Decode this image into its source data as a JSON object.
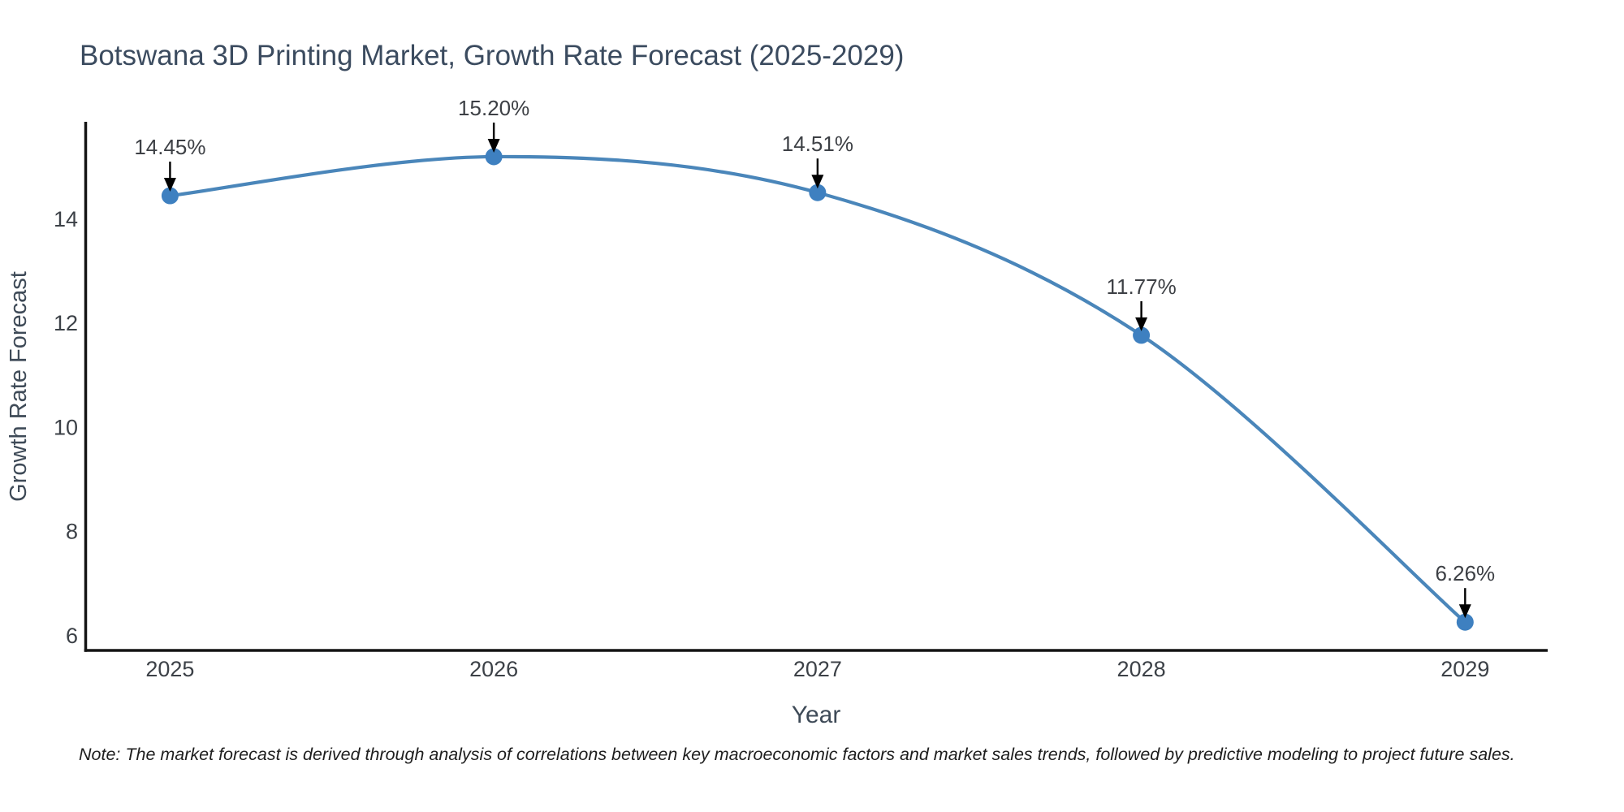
{
  "page": {
    "background": "#ffffff"
  },
  "chart_data": {
    "type": "line",
    "title": "Botswana 3D Printing Market, Growth Rate Forecast (2025-2029)",
    "xlabel": "Year",
    "ylabel": "Growth Rate Forecast",
    "x": [
      2025,
      2026,
      2027,
      2028,
      2029
    ],
    "y": [
      14.45,
      15.2,
      14.51,
      11.77,
      6.26
    ],
    "point_labels": [
      "14.45%",
      "15.20%",
      "14.51%",
      "11.77%",
      "6.26%"
    ],
    "x_tick_labels": [
      "2025",
      "2026",
      "2027",
      "2028",
      "2029"
    ],
    "y_tick_values": [
      6,
      8,
      10,
      12,
      14
    ],
    "y_tick_labels": [
      "6",
      "8",
      "10",
      "12",
      "14"
    ],
    "xlim": [
      2024.735,
      2029.255
    ],
    "ylim": [
      5.69,
      15.87
    ],
    "grid": false,
    "legend": "none",
    "line_color": "#4a86ba",
    "marker_color": "#3e80c0",
    "axis_color": "#141414",
    "annotation_arrow_color": "#000000",
    "title_color": "#3b4b5f"
  },
  "note": "Note: The market forecast is derived through analysis of correlations between key macroeconomic factors and market sales trends, followed by predictive modeling to project future sales."
}
